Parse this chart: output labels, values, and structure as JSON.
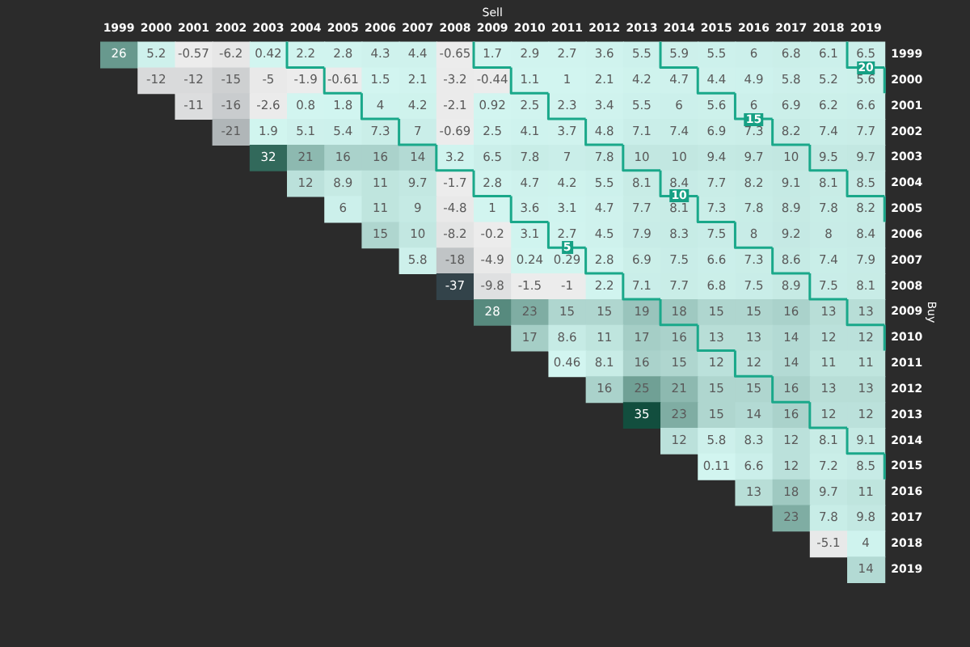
{
  "chart_data": {
    "type": "heatmap",
    "xlabel": "Sell",
    "ylabel": "Buy",
    "data_labels": true,
    "categories": [
      "1999",
      "2000",
      "2001",
      "2002",
      "2003",
      "2004",
      "2005",
      "2006",
      "2007",
      "2008",
      "2009",
      "2010",
      "2011",
      "2012",
      "2013",
      "2014",
      "2015",
      "2016",
      "2017",
      "2018",
      "2019"
    ],
    "y_categories": [
      "1999",
      "2000",
      "2001",
      "2002",
      "2003",
      "2004",
      "2005",
      "2006",
      "2007",
      "2008",
      "2009",
      "2010",
      "2011",
      "2012",
      "2013",
      "2014",
      "2015",
      "2016",
      "2017",
      "2018",
      "2019"
    ],
    "cells": [
      [
        26,
        5.2,
        -0.57,
        -6.2,
        0.42,
        2.2,
        2.8,
        4.3,
        4.4,
        -0.65,
        1.7,
        2.9,
        2.7,
        3.6,
        5.5,
        5.9,
        5.5,
        6,
        6.8,
        6.1,
        6.5
      ],
      [
        null,
        -12,
        -12,
        -15,
        -5,
        -1.9,
        -0.61,
        1.5,
        2.1,
        -3.2,
        -0.44,
        1.1,
        1,
        2.1,
        4.2,
        4.7,
        4.4,
        4.9,
        5.8,
        5.2,
        5.6
      ],
      [
        null,
        null,
        -11,
        -16,
        -2.6,
        0.8,
        1.8,
        4,
        4.2,
        -2.1,
        0.92,
        2.5,
        2.3,
        3.4,
        5.5,
        6,
        5.6,
        6,
        6.9,
        6.2,
        6.6
      ],
      [
        null,
        null,
        null,
        -21,
        1.9,
        5.1,
        5.4,
        7.3,
        7,
        -0.69,
        2.5,
        4.1,
        3.7,
        4.8,
        7.1,
        7.4,
        6.9,
        7.3,
        8.2,
        7.4,
        7.7
      ],
      [
        null,
        null,
        null,
        null,
        32,
        21,
        16,
        16,
        14,
        3.2,
        6.5,
        7.8,
        7,
        7.8,
        10,
        10,
        9.4,
        9.7,
        10,
        9.5,
        9.7
      ],
      [
        null,
        null,
        null,
        null,
        null,
        12,
        8.9,
        11,
        9.7,
        -1.7,
        2.8,
        4.7,
        4.2,
        5.5,
        8.1,
        8.4,
        7.7,
        8.2,
        9.1,
        8.1,
        8.5
      ],
      [
        null,
        null,
        null,
        null,
        null,
        null,
        6,
        11,
        9,
        -4.8,
        1,
        3.6,
        3.1,
        4.7,
        7.7,
        8.1,
        7.3,
        7.8,
        8.9,
        7.8,
        8.2
      ],
      [
        null,
        null,
        null,
        null,
        null,
        null,
        null,
        15,
        10,
        -8.2,
        -0.2,
        3.1,
        2.7,
        4.5,
        7.9,
        8.3,
        7.5,
        8,
        9.2,
        8,
        8.4
      ],
      [
        null,
        null,
        null,
        null,
        null,
        null,
        null,
        null,
        5.8,
        -18,
        -4.9,
        0.24,
        0.29,
        2.8,
        6.9,
        7.5,
        6.6,
        7.3,
        8.6,
        7.4,
        7.9
      ],
      [
        null,
        null,
        null,
        null,
        null,
        null,
        null,
        null,
        null,
        -37,
        -9.8,
        -1.5,
        -1,
        2.2,
        7.1,
        7.7,
        6.8,
        7.5,
        8.9,
        7.5,
        8.1
      ],
      [
        null,
        null,
        null,
        null,
        null,
        null,
        null,
        null,
        null,
        null,
        28,
        23,
        15,
        15,
        19,
        18,
        15,
        15,
        16,
        13,
        13
      ],
      [
        null,
        null,
        null,
        null,
        null,
        null,
        null,
        null,
        null,
        null,
        null,
        17,
        8.6,
        11,
        17,
        16,
        13,
        13,
        14,
        12,
        12
      ],
      [
        null,
        null,
        null,
        null,
        null,
        null,
        null,
        null,
        null,
        null,
        null,
        null,
        0.46,
        8.1,
        16,
        15,
        12,
        12,
        14,
        11,
        11
      ],
      [
        null,
        null,
        null,
        null,
        null,
        null,
        null,
        null,
        null,
        null,
        null,
        null,
        null,
        16,
        25,
        21,
        15,
        15,
        16,
        13,
        13
      ],
      [
        null,
        null,
        null,
        null,
        null,
        null,
        null,
        null,
        null,
        null,
        null,
        null,
        null,
        null,
        35,
        23,
        15,
        14,
        16,
        12,
        12
      ],
      [
        null,
        null,
        null,
        null,
        null,
        null,
        null,
        null,
        null,
        null,
        null,
        null,
        null,
        null,
        null,
        12,
        5.8,
        8.3,
        12,
        8.1,
        9.1
      ],
      [
        null,
        null,
        null,
        null,
        null,
        null,
        null,
        null,
        null,
        null,
        null,
        null,
        null,
        null,
        null,
        null,
        0.11,
        6.6,
        12,
        7.2,
        8.5
      ],
      [
        null,
        null,
        null,
        null,
        null,
        null,
        null,
        null,
        null,
        null,
        null,
        null,
        null,
        null,
        null,
        null,
        null,
        13,
        18,
        9.7,
        11
      ],
      [
        null,
        null,
        null,
        null,
        null,
        null,
        null,
        null,
        null,
        null,
        null,
        null,
        null,
        null,
        null,
        null,
        null,
        null,
        23,
        7.8,
        9.8
      ],
      [
        null,
        null,
        null,
        null,
        null,
        null,
        null,
        null,
        null,
        null,
        null,
        null,
        null,
        null,
        null,
        null,
        null,
        null,
        null,
        -5.1,
        4
      ],
      [
        null,
        null,
        null,
        null,
        null,
        null,
        null,
        null,
        null,
        null,
        null,
        null,
        null,
        null,
        null,
        null,
        null,
        null,
        null,
        null,
        14
      ]
    ],
    "annotations": [
      "20",
      "15",
      "10",
      "5"
    ]
  }
}
